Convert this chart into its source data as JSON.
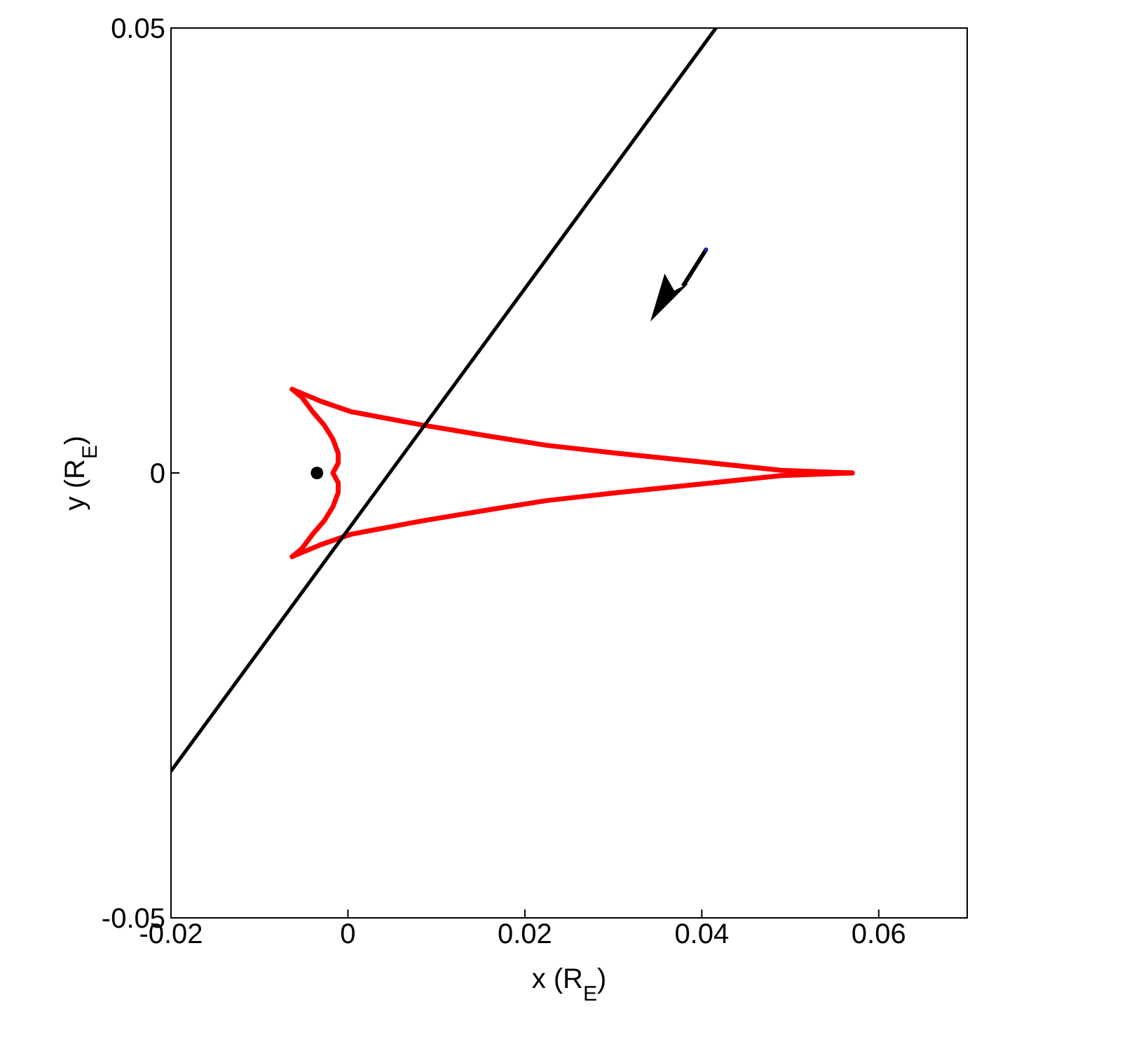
{
  "chart_data": {
    "type": "line",
    "xlabel": "x (R$_{E}$)",
    "ylabel": "y (R$_{E}$)",
    "xlim": [
      -0.02,
      0.07
    ],
    "ylim": [
      -0.05,
      0.05
    ],
    "xticks": [
      -0.02,
      0,
      0.02,
      0.04,
      0.06
    ],
    "yticks": [
      -0.05,
      0,
      0.05
    ],
    "series": [
      {
        "color": "#ff0000",
        "marker": "none",
        "x": [
          0.057,
          0.049,
          0.0384,
          0.0305,
          0.0225,
          0.0162,
          0.0083,
          0.0003,
          -0.0029,
          -0.0063
        ],
        "values": [
          0,
          0.0003,
          0.0014,
          0.0022,
          0.0031,
          0.0041,
          0.0054,
          0.0069,
          0.008,
          0.0094
        ]
      },
      {
        "color": "#ff0000",
        "marker": "none",
        "x": [
          -0.0063,
          -0.0052,
          -0.004,
          -0.0027,
          -0.0017,
          -0.0011,
          -0.0011,
          -0.0017,
          -0.0011,
          -0.0011,
          -0.0017,
          -0.0027,
          -0.004,
          -0.0052,
          -0.0063
        ],
        "values": [
          0.0094,
          0.0085,
          0.0069,
          0.0054,
          0.0038,
          0.0022,
          0.0011,
          0,
          -0.0011,
          -0.0022,
          -0.0038,
          -0.0054,
          -0.0069,
          -0.0085,
          -0.0094
        ]
      },
      {
        "color": "#ff0000",
        "marker": "none",
        "x": [
          -0.0063,
          -0.0029,
          0.0003,
          0.0083,
          0.0162,
          0.0225,
          0.0305,
          0.0384,
          0.049,
          0.057
        ],
        "values": [
          -0.0094,
          -0.008,
          -0.0069,
          -0.0054,
          -0.0041,
          -0.0031,
          -0.0022,
          -0.0014,
          -0.0003,
          0
        ]
      },
      {
        "color": "#000000",
        "marker": "none",
        "x": [
          -0.02,
          0.0416
        ],
        "values": [
          -0.0335,
          0.05
        ]
      },
      {
        "type": "scatter",
        "color": "#000000",
        "marker": "circle",
        "x": [
          -0.0035
        ],
        "values": [
          0
        ]
      }
    ]
  }
}
